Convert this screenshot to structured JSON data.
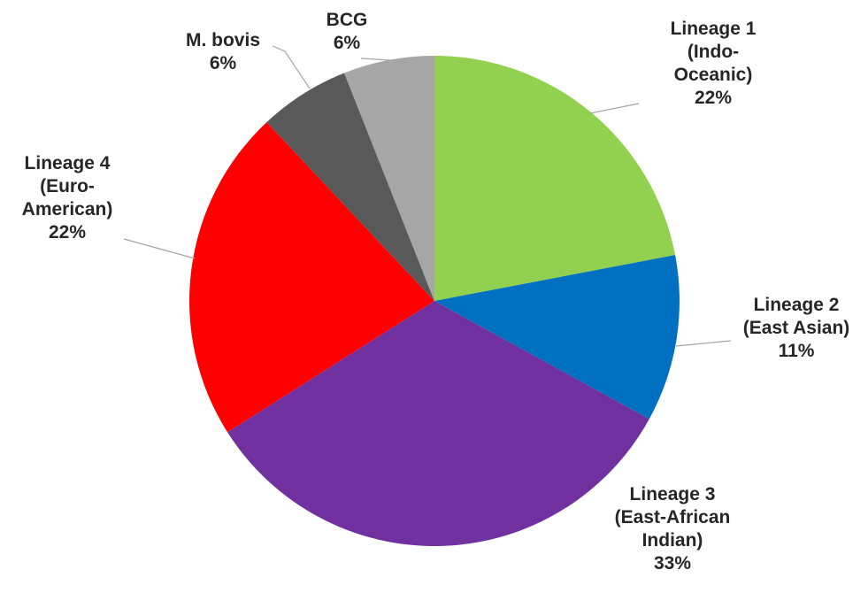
{
  "chart_data": {
    "type": "pie",
    "title": "",
    "start_angle_deg": 0,
    "direction": "clockwise",
    "slices": [
      {
        "name": "Lineage 1 (Indo-Oceanic)",
        "lines": [
          "Lineage 1",
          "(Indo-",
          "Oceanic)"
        ],
        "percent_label": "22%",
        "value": 22,
        "color": "#92D050"
      },
      {
        "name": "Lineage 2 (East Asian)",
        "lines": [
          "Lineage 2",
          "(East Asian)"
        ],
        "percent_label": "11%",
        "value": 11,
        "color": "#0070C0"
      },
      {
        "name": "Lineage 3 (East-African Indian)",
        "lines": [
          "Lineage 3",
          "(East-African",
          "Indian)"
        ],
        "percent_label": "33%",
        "value": 33,
        "color": "#7030A0"
      },
      {
        "name": "Lineage 4 (Euro-American)",
        "lines": [
          "Lineage 4",
          "(Euro-",
          "American)"
        ],
        "percent_label": "22%",
        "value": 22,
        "color": "#FF0000"
      },
      {
        "name": "M. bovis",
        "lines": [
          "M. bovis"
        ],
        "percent_label": "6%",
        "value": 6,
        "color": "#595959"
      },
      {
        "name": "BCG",
        "lines": [
          "BCG"
        ],
        "percent_label": "6%",
        "value": 6,
        "color": "#A6A6A6"
      }
    ]
  }
}
